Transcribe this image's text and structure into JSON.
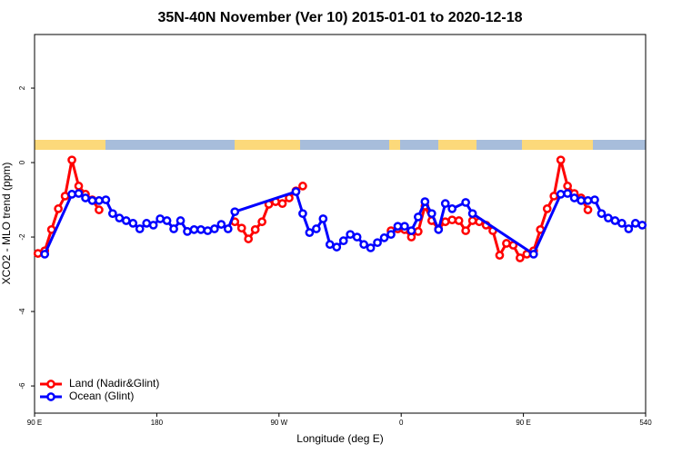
{
  "chart_data": {
    "type": "line",
    "title": "35N-40N November (Ver 10)   2015-01-01 to 2020-12-18",
    "x_label": "Longitude (deg E)",
    "y_label": "XCO2 - MLO trend (ppm)",
    "xlim": [
      90,
      540
    ],
    "ylim": [
      -6.73,
      3.44
    ],
    "xticks": [
      {
        "value": 90,
        "label": "90 E"
      },
      180,
      {
        "value": 270,
        "label": "90 W"
      },
      {
        "value": 360,
        "label": "0"
      },
      {
        "value": 450,
        "label": "90 E"
      },
      540
    ],
    "yticks": [
      -6,
      -4,
      -2,
      0,
      2
    ],
    "legend": "bottomleft",
    "series": [
      {
        "name": "Land (Nadir&Glint)",
        "color": "#ff0000",
        "x": [
          92.5,
          97.5,
          102.5,
          107.5,
          112.5,
          117.5,
          122.5,
          127.5,
          132.5,
          137.5,
          142.5,
          147.5,
          152.5,
          157.5,
          162.5,
          167.5,
          172.5,
          177.5,
          182.5,
          187.5,
          192.5,
          197.5,
          202.5,
          207.5,
          212.5,
          217.5,
          222.5,
          227.5,
          232.5,
          237.5,
          242.5,
          247.5,
          252.5,
          257.5,
          262.5,
          267.5,
          272.5,
          277.5,
          282.5,
          287.5,
          292.5,
          297.5,
          302.5,
          307.5,
          312.5,
          317.5,
          322.5,
          327.5,
          332.5,
          337.5,
          342.5,
          347.5,
          352.5,
          357.5,
          362.5,
          367.5,
          372.5,
          377.5,
          382.5,
          387.5,
          392.5,
          397.5,
          402.5,
          407.5,
          412.5,
          417.5,
          422.5,
          427.5,
          432.5,
          437.5,
          442.5,
          447.5,
          452.5,
          457.5,
          462.5,
          467.5,
          472.5,
          477.5,
          482.5,
          487.5,
          492.5,
          497.5
        ],
        "values": [
          -2.44,
          -2.37,
          -1.8,
          -1.24,
          -0.9,
          0.07,
          -0.63,
          -0.85,
          -1.0,
          -1.27,
          null,
          null,
          null,
          null,
          null,
          null,
          null,
          null,
          null,
          null,
          null,
          null,
          null,
          null,
          null,
          null,
          null,
          null,
          null,
          -1.59,
          -1.76,
          -2.05,
          -1.8,
          -1.59,
          -1.12,
          -1.05,
          -1.1,
          -0.95,
          -0.76,
          -0.63,
          null,
          null,
          null,
          null,
          null,
          null,
          null,
          null,
          null,
          null,
          null,
          null,
          -1.83,
          -1.78,
          -1.8,
          -2.0,
          -1.85,
          -1.17,
          -1.56,
          -1.78,
          -1.59,
          -1.54,
          -1.56,
          -1.83,
          -1.56,
          -1.59,
          -1.68,
          -1.83,
          -2.49,
          -2.17,
          -2.22,
          -2.56,
          -2.46,
          -2.37,
          -1.8,
          -1.24,
          -0.9,
          0.07,
          -0.63,
          -0.83,
          -0.95,
          -1.27
        ]
      },
      {
        "name": "Ocean (Glint)",
        "color": "#0000ff",
        "x": [
          97.5,
          117.5,
          122.5,
          127.5,
          132.5,
          137.5,
          142.5,
          147.5,
          152.5,
          157.5,
          162.5,
          167.5,
          172.5,
          177.5,
          182.5,
          187.5,
          192.5,
          197.5,
          202.5,
          207.5,
          212.5,
          217.5,
          222.5,
          227.5,
          232.5,
          237.5,
          282.5,
          287.5,
          292.5,
          297.5,
          302.5,
          307.5,
          312.5,
          317.5,
          322.5,
          327.5,
          332.5,
          337.5,
          342.5,
          347.5,
          352.5,
          357.5,
          362.5,
          367.5,
          372.5,
          377.5,
          382.5,
          387.5,
          392.5,
          397.5,
          407.5,
          412.5,
          457.5,
          477.5,
          482.5,
          487.5,
          492.5,
          497.5,
          502.5,
          507.5,
          512.5,
          517.5,
          522.5,
          527.5,
          532.5,
          537.5
        ],
        "values": [
          -2.46,
          -0.85,
          -0.83,
          -0.95,
          -1.02,
          -1.02,
          -1.0,
          -1.37,
          -1.49,
          -1.56,
          -1.63,
          -1.78,
          -1.63,
          -1.68,
          -1.51,
          -1.56,
          -1.78,
          -1.56,
          -1.85,
          -1.8,
          -1.8,
          -1.83,
          -1.78,
          -1.66,
          -1.78,
          -1.32,
          -0.78,
          -1.37,
          -1.88,
          -1.78,
          -1.51,
          -2.2,
          -2.27,
          -2.1,
          -1.93,
          -2.0,
          -2.2,
          -2.29,
          -2.15,
          -2.02,
          -1.93,
          -1.71,
          -1.71,
          -1.83,
          -1.46,
          -1.05,
          -1.37,
          -1.8,
          -1.1,
          -1.24,
          -1.07,
          -1.37,
          -2.46,
          -0.85,
          -0.83,
          -0.95,
          -1.02,
          -1.02,
          -1.0,
          -1.37,
          -1.49,
          -1.56,
          -1.63,
          -1.78,
          -1.63,
          -1.68
        ]
      }
    ]
  }
}
